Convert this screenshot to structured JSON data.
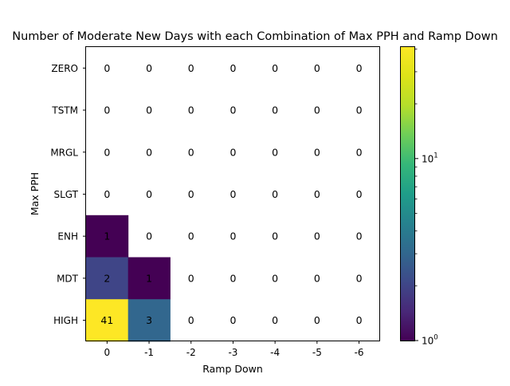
{
  "chart_data": {
    "type": "heatmap",
    "title": "Number of Moderate New Days with each Combination of Max PPH and Ramp Down",
    "xlabel": "Ramp Down",
    "ylabel": "Max PPH",
    "x_categories": [
      "0",
      "-1",
      "-2",
      "-3",
      "-4",
      "-5",
      "-6"
    ],
    "y_categories": [
      "ZERO",
      "TSTM",
      "MRGL",
      "SLGT",
      "ENH",
      "MDT",
      "HIGH"
    ],
    "values": [
      [
        0,
        0,
        0,
        0,
        0,
        0,
        0
      ],
      [
        0,
        0,
        0,
        0,
        0,
        0,
        0
      ],
      [
        0,
        0,
        0,
        0,
        0,
        0,
        0
      ],
      [
        0,
        0,
        0,
        0,
        0,
        0,
        0
      ],
      [
        1,
        0,
        0,
        0,
        0,
        0,
        0
      ],
      [
        2,
        1,
        0,
        0,
        0,
        0,
        0
      ],
      [
        41,
        3,
        0,
        0,
        0,
        0,
        0
      ]
    ],
    "color_scale": "log",
    "colormap": "viridis",
    "colorbar": {
      "range": [
        1,
        41
      ],
      "ticks": [
        {
          "value": 1,
          "base": "10",
          "exp": "0"
        },
        {
          "value": 10,
          "base": "10",
          "exp": "1"
        }
      ]
    },
    "zero_cells": "blank (white)",
    "grid": false,
    "legend": "colorbar-right"
  }
}
